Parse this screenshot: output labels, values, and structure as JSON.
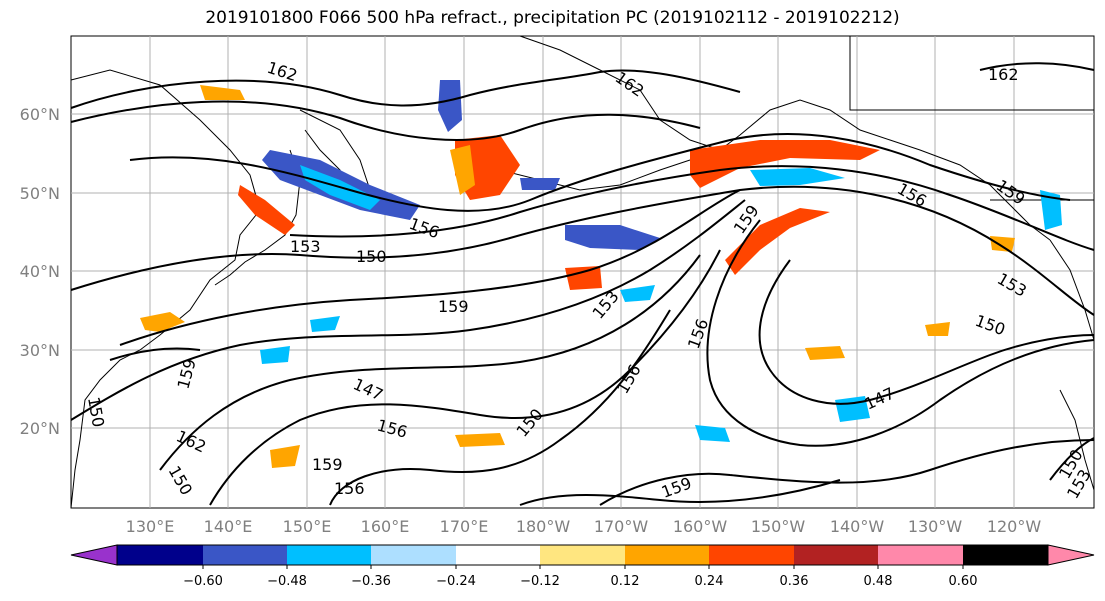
{
  "title": "2019101800 F066 500 hPa refract., precipitation PC (2019102112 - 2019102212)",
  "lat_labels": [
    "60°N",
    "50°N",
    "40°N",
    "30°N",
    "20°N"
  ],
  "lon_labels": [
    "130°E",
    "140°E",
    "150°E",
    "160°E",
    "170°E",
    "180°W",
    "170°W",
    "160°W",
    "150°W",
    "140°W",
    "130°W",
    "120°W"
  ],
  "colorbar": {
    "colors": [
      "#9932CC",
      "#00008B",
      "#3A56C6",
      "#00BFFF",
      "#ADDFFF",
      "#FFFFFF",
      "#FFE680",
      "#FFA500",
      "#FF4500",
      "#B22222",
      "#FF88AA"
    ],
    "tick_labels": [
      "−0.60",
      "−0.48",
      "−0.36",
      "−0.24",
      "−0.12",
      "0.12",
      "0.24",
      "0.36",
      "0.48",
      "0.60"
    ]
  },
  "contour_labels": [
    "162",
    "162",
    "162",
    "159",
    "156",
    "156",
    "153",
    "153",
    "150",
    "150",
    "150",
    "159",
    "153",
    "159",
    "156",
    "156",
    "147",
    "147",
    "156",
    "150",
    "156",
    "159",
    "159",
    "162",
    "150",
    "159",
    "150",
    "153"
  ]
}
